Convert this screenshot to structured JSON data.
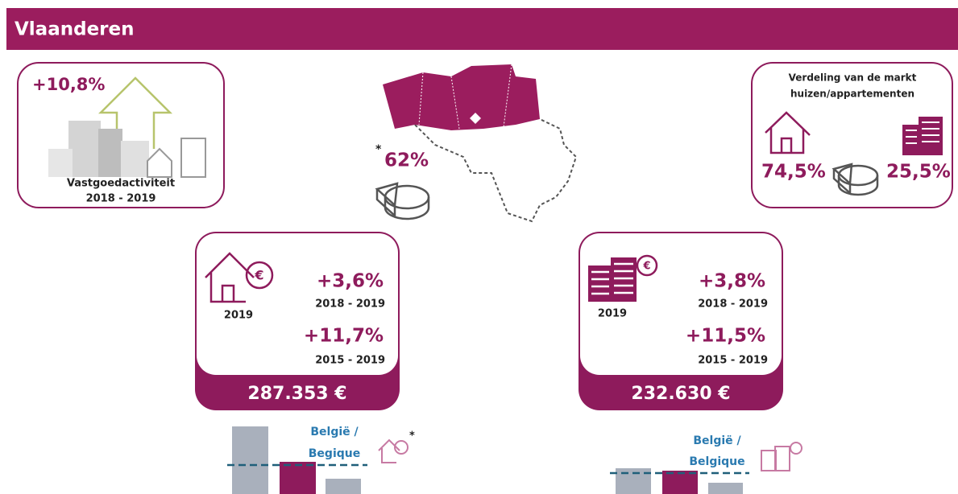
{
  "header": {
    "title": "Vlaanderen"
  },
  "activity": {
    "change": "+10,8%",
    "label": "Vastgoedactiviteit",
    "period": "2018 - 2019"
  },
  "map": {
    "note": "*",
    "share": "62%"
  },
  "market": {
    "title_line1": "Verdeling van de markt",
    "title_line2": "huizen/appartementen",
    "houses": "74,5%",
    "apartments": "25,5%"
  },
  "houses": {
    "year": "2019",
    "change_short": "+3,6%",
    "period_short": "2018 - 2019",
    "change_long": "+11,7%",
    "period_long": "2015 - 2019",
    "price": "287.353 €"
  },
  "apartments": {
    "year": "2019",
    "change_short": "+3,8%",
    "period_short": "2018 - 2019",
    "change_long": "+11,5%",
    "period_long": "2015 - 2019",
    "price": "232.630 €"
  },
  "comparison_houses": {
    "line1": "België /",
    "line2": "Begique",
    "note": "*"
  },
  "comparison_apartments": {
    "line1": "België /",
    "line2": "Belgique"
  }
}
